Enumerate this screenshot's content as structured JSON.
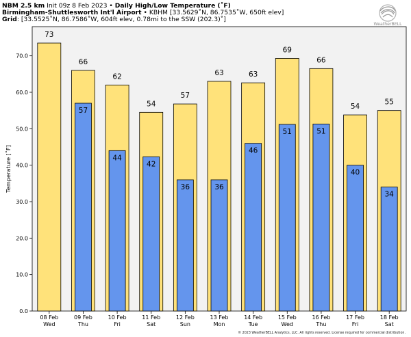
{
  "header": {
    "line1_bold": "NBM 2.5 km",
    "line1_init": " Init 09z 8 Feb 2023 • ",
    "line1_title": "Daily High/Low Temperature (˚F)",
    "line2_bold": "Birmingham-Shuttlesworth Int'l Airport",
    "line2_rest": " • KBHM [33.5629˚N, 86.7535˚W, 650ft elev]",
    "line3_bold": "Grid",
    "line3_rest": ": [33.5525˚N, 86.7586˚W, 604ft elev, 0.78mi to the SSW (202.3)˚]"
  },
  "logo": {
    "text": "WeatherBELL",
    "icon": "swirl-logo-icon"
  },
  "copyright": "© 2023 WeatherBELL Analytics, LLC. All rights reserved. License required for commercial distribution.",
  "colors": {
    "high": "#ffe27a",
    "low": "#6495ed",
    "plot_bg": "#f2f2f2",
    "border": "#000000"
  },
  "chart_data": {
    "type": "bar",
    "ylabel": "Temperature [˚F]",
    "ylim": [
      0,
      78
    ],
    "yticks": [
      0,
      10,
      20,
      30,
      40,
      50,
      60,
      70
    ],
    "ytick_labels": [
      "0.0",
      "10.0",
      "20.0",
      "30.0",
      "40.0",
      "50.0",
      "60.0",
      "70.0"
    ],
    "categories": [
      "08 Feb",
      "09 Feb",
      "10 Feb",
      "11 Feb",
      "12 Feb",
      "13 Feb",
      "14 Feb",
      "15 Feb",
      "16 Feb",
      "17 Feb",
      "18 Feb"
    ],
    "weekdays": [
      "Wed",
      "Thu",
      "Fri",
      "Sat",
      "Sun",
      "Mon",
      "Tue",
      "Wed",
      "Thu",
      "Fri",
      "Sat"
    ],
    "series": [
      {
        "name": "High",
        "values": [
          73,
          66,
          62,
          54,
          57,
          63,
          63,
          69,
          66,
          54,
          55
        ],
        "labels": [
          "73",
          "66",
          "62",
          "54",
          "57",
          "63",
          "63",
          "69",
          "66",
          "54",
          "55"
        ]
      },
      {
        "name": "Low",
        "values": [
          null,
          57,
          44,
          42,
          36,
          36,
          46,
          51,
          51,
          40,
          34
        ],
        "labels": [
          "",
          "57",
          "44",
          "42",
          "36",
          "36",
          "46",
          "51",
          "51",
          "40",
          "34"
        ]
      }
    ],
    "actual_highs": [
      73.5,
      66,
      62,
      54.5,
      56.8,
      63,
      62.6,
      69.3,
      66.5,
      53.8,
      55
    ],
    "actual_lows": [
      null,
      57,
      44,
      42.3,
      36,
      36,
      46,
      51.2,
      51.3,
      40,
      34
    ],
    "grid": false
  }
}
